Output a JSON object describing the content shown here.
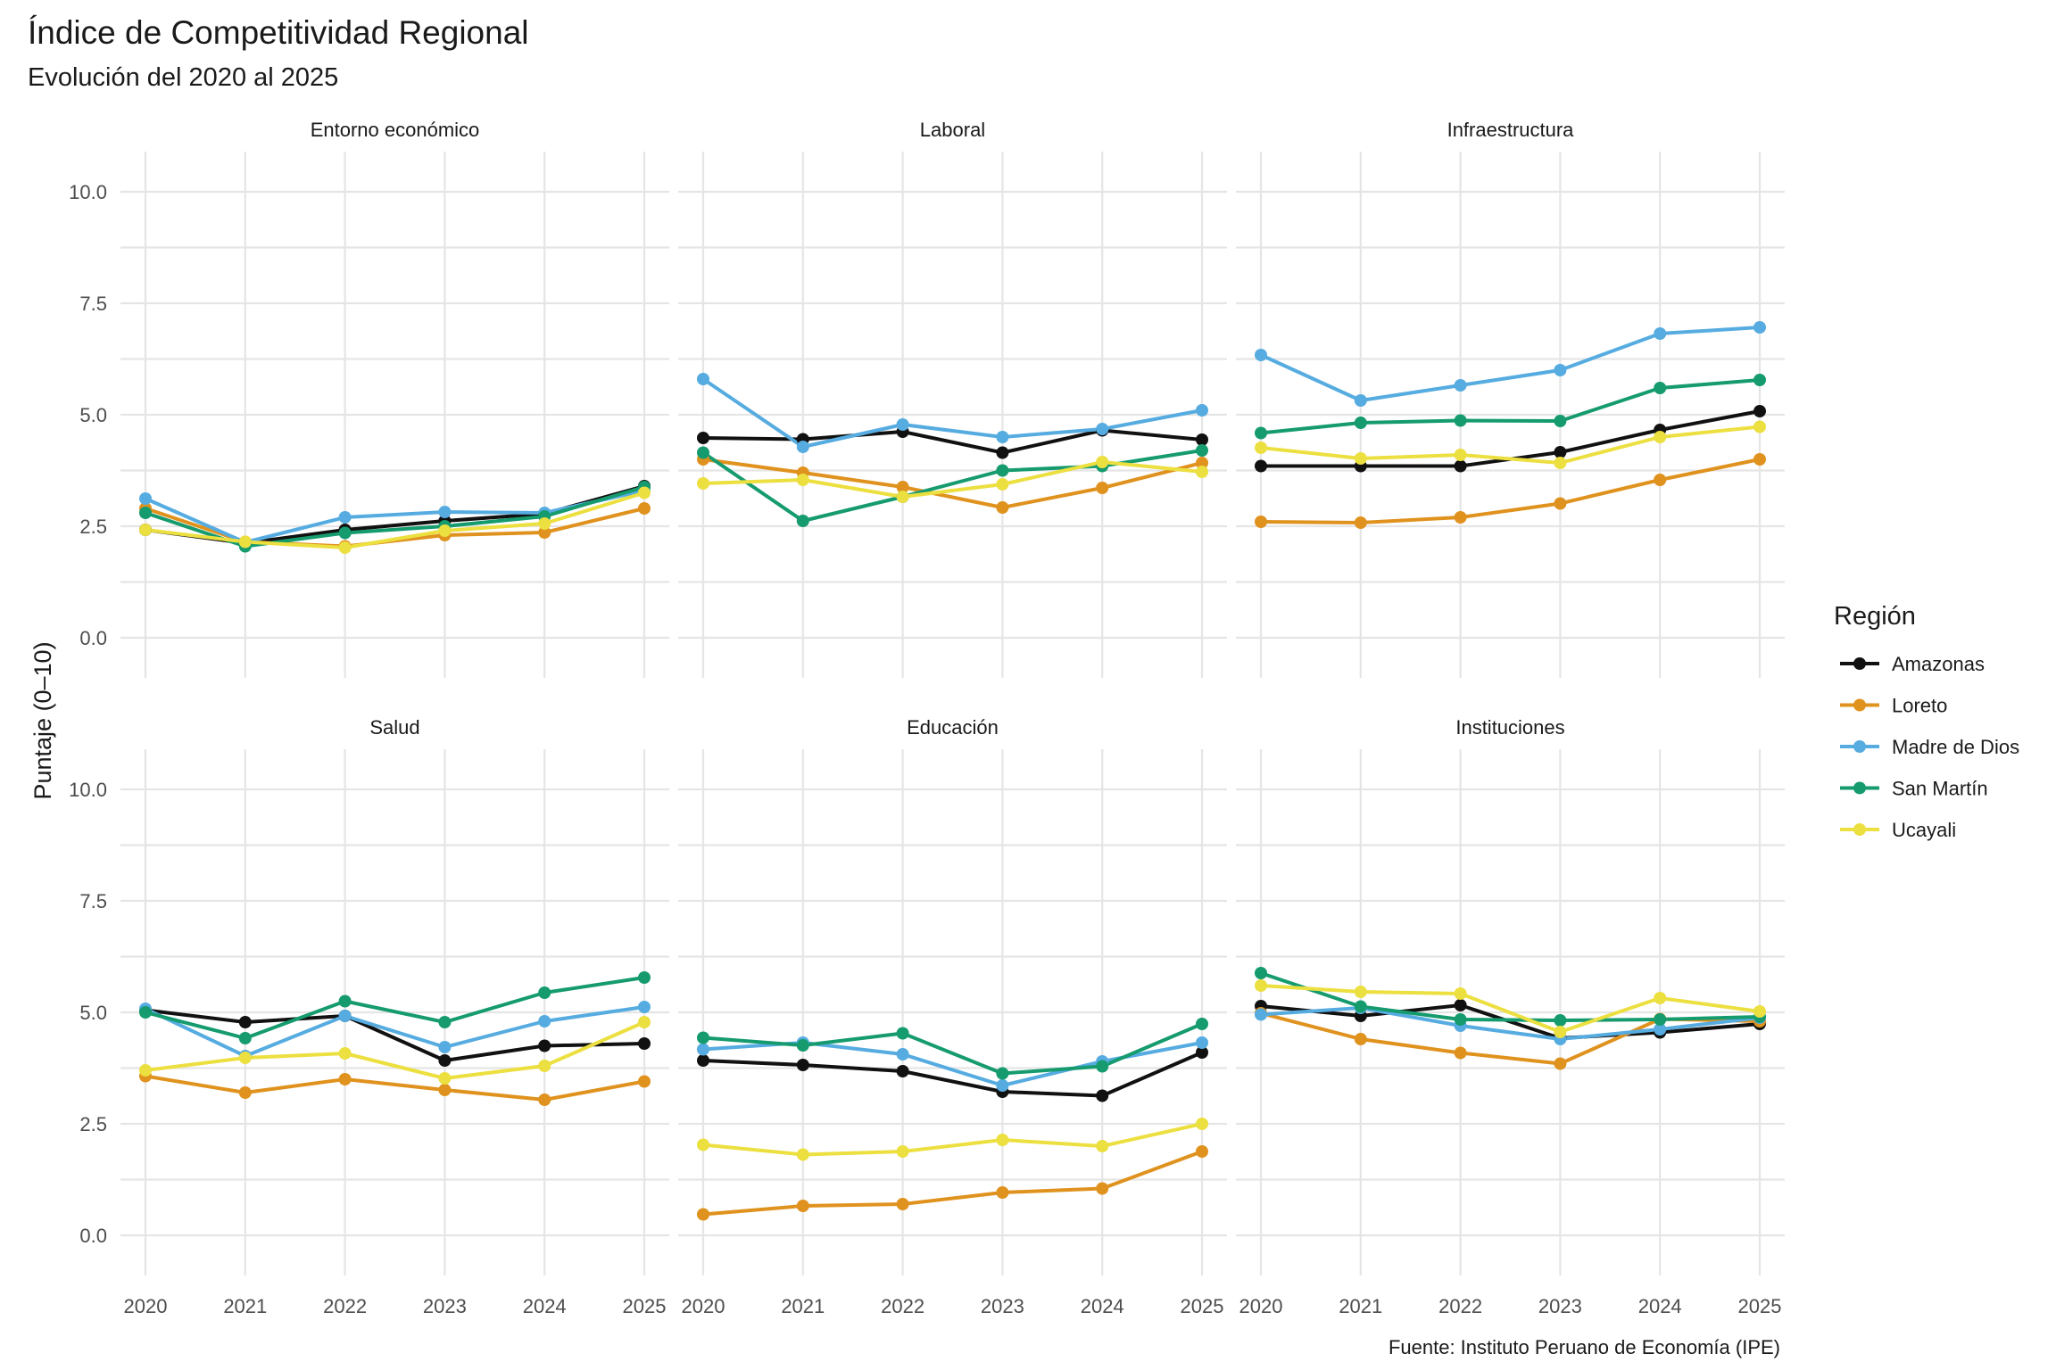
{
  "chart_data": {
    "type": "line",
    "title": "Índice de Competitividad Regional",
    "subtitle": "Evolución del 2020 al 2025",
    "ylabel": "Puntaje (0–10)",
    "caption": "Fuente: Instituto Peruano de Economía (IPE)",
    "ylim": [
      0,
      10
    ],
    "yticks": [
      0,
      2.5,
      5,
      7.5,
      10
    ],
    "ytick_labels": [
      "0.0",
      "2.5",
      "5.0",
      "7.5",
      "10.0"
    ],
    "x": [
      "2020",
      "2021",
      "2022",
      "2023",
      "2024",
      "2025"
    ],
    "grid": true,
    "legend": {
      "title": "Región",
      "position": "right",
      "entries": [
        {
          "name": "Amazonas",
          "color": "#111111"
        },
        {
          "name": "Loreto",
          "color": "#E0921E"
        },
        {
          "name": "Madre de Dios",
          "color": "#56ACE0"
        },
        {
          "name": "San Martín",
          "color": "#159B6E"
        },
        {
          "name": "Ucayali",
          "color": "#ECDF40"
        }
      ]
    },
    "panels": [
      {
        "name": "Entorno económico",
        "series": [
          {
            "name": "Amazonas",
            "values": [
              2.42,
              2.12,
              2.42,
              2.62,
              2.78,
              3.4
            ]
          },
          {
            "name": "Loreto",
            "values": [
              2.9,
              2.15,
              2.05,
              2.3,
              2.36,
              2.9
            ]
          },
          {
            "name": "Madre de Dios",
            "values": [
              3.12,
              2.14,
              2.7,
              2.82,
              2.8,
              3.3
            ]
          },
          {
            "name": "San Martín",
            "values": [
              2.8,
              2.05,
              2.35,
              2.5,
              2.72,
              3.38
            ]
          },
          {
            "name": "Ucayali",
            "values": [
              2.42,
              2.15,
              2.02,
              2.4,
              2.56,
              3.25
            ]
          }
        ]
      },
      {
        "name": "Laboral",
        "series": [
          {
            "name": "Amazonas",
            "values": [
              4.48,
              4.45,
              4.62,
              4.15,
              4.65,
              4.44
            ]
          },
          {
            "name": "Loreto",
            "values": [
              4.0,
              3.7,
              3.38,
              2.92,
              3.36,
              3.92
            ]
          },
          {
            "name": "Madre de Dios",
            "values": [
              5.8,
              4.28,
              4.78,
              4.5,
              4.68,
              5.1
            ]
          },
          {
            "name": "San Martín",
            "values": [
              4.15,
              2.62,
              3.16,
              3.75,
              3.85,
              4.2
            ]
          },
          {
            "name": "Ucayali",
            "values": [
              3.46,
              3.54,
              3.16,
              3.44,
              3.94,
              3.72
            ]
          }
        ]
      },
      {
        "name": "Infraestructura",
        "series": [
          {
            "name": "Amazonas",
            "values": [
              3.85,
              3.85,
              3.85,
              4.16,
              4.66,
              5.08
            ]
          },
          {
            "name": "Loreto",
            "values": [
              2.6,
              2.58,
              2.7,
              3.01,
              3.54,
              4.0
            ]
          },
          {
            "name": "Madre de Dios",
            "values": [
              6.34,
              5.32,
              5.66,
              6.0,
              6.82,
              6.96
            ]
          },
          {
            "name": "San Martín",
            "values": [
              4.59,
              4.82,
              4.87,
              4.86,
              5.6,
              5.78
            ]
          },
          {
            "name": "Ucayali",
            "values": [
              4.26,
              4.02,
              4.1,
              3.92,
              4.5,
              4.73
            ]
          }
        ]
      },
      {
        "name": "Salud",
        "series": [
          {
            "name": "Amazonas",
            "values": [
              5.05,
              4.78,
              4.92,
              3.92,
              4.25,
              4.3
            ]
          },
          {
            "name": "Loreto",
            "values": [
              3.57,
              3.2,
              3.5,
              3.26,
              3.04,
              3.45
            ]
          },
          {
            "name": "Madre de Dios",
            "values": [
              5.08,
              4.02,
              4.92,
              4.22,
              4.8,
              5.12
            ]
          },
          {
            "name": "San Martín",
            "values": [
              5.0,
              4.42,
              5.25,
              4.78,
              5.44,
              5.78
            ]
          },
          {
            "name": "Ucayali",
            "values": [
              3.7,
              3.98,
              4.08,
              3.52,
              3.8,
              4.78
            ]
          }
        ]
      },
      {
        "name": "Educación",
        "series": [
          {
            "name": "Amazonas",
            "values": [
              3.92,
              3.82,
              3.68,
              3.22,
              3.13,
              4.1
            ]
          },
          {
            "name": "Loreto",
            "values": [
              0.47,
              0.66,
              0.7,
              0.96,
              1.05,
              1.88
            ]
          },
          {
            "name": "Madre de Dios",
            "values": [
              4.17,
              4.32,
              4.06,
              3.36,
              3.9,
              4.32
            ]
          },
          {
            "name": "San Martín",
            "values": [
              4.43,
              4.26,
              4.53,
              3.63,
              3.79,
              4.74
            ]
          },
          {
            "name": "Ucayali",
            "values": [
              2.03,
              1.81,
              1.88,
              2.14,
              2.0,
              2.5
            ]
          }
        ]
      },
      {
        "name": "Instituciones",
        "series": [
          {
            "name": "Amazonas",
            "values": [
              5.14,
              4.92,
              5.16,
              4.42,
              4.55,
              4.74
            ]
          },
          {
            "name": "Loreto",
            "values": [
              4.98,
              4.4,
              4.09,
              3.85,
              4.85,
              4.8
            ]
          },
          {
            "name": "Madre de Dios",
            "values": [
              4.95,
              5.1,
              4.7,
              4.4,
              4.62,
              4.88
            ]
          },
          {
            "name": "San Martín",
            "values": [
              5.88,
              5.13,
              4.84,
              4.82,
              4.84,
              4.9
            ]
          },
          {
            "name": "Ucayali",
            "values": [
              5.6,
              5.46,
              5.42,
              4.56,
              5.32,
              5.02
            ]
          }
        ]
      }
    ]
  }
}
